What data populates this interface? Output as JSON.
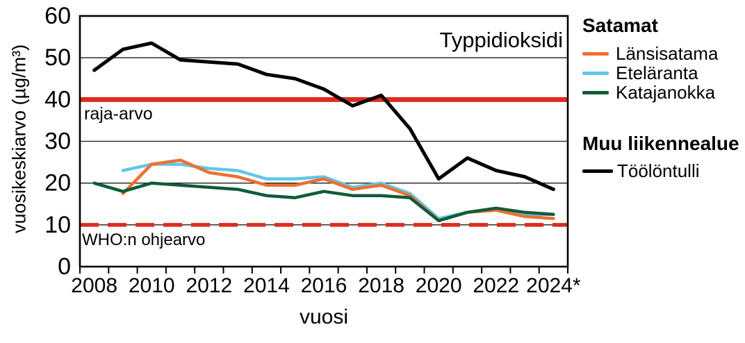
{
  "figure": {
    "title": "Typpidioksidi",
    "xlabel": "vuosi",
    "ylabel": "vuosikeskiarvo (µg/m³)"
  },
  "annotations": {
    "limit_label": "raja-arvo",
    "who_label": "WHO:n ohjearvo"
  },
  "legend": {
    "group1_title": "Satamat",
    "group2_title": "Muu liikennealue",
    "items": [
      {
        "label": "Länsisatama",
        "color": "#ED7031"
      },
      {
        "label": "Eteläranta",
        "color": "#62C6E9"
      },
      {
        "label": "Katajanokka",
        "color": "#0F5C38"
      },
      {
        "label": "Töölöntulli",
        "color": "#000000"
      }
    ]
  },
  "colors": {
    "reference_red": "#DD2B20",
    "grid": "#1a1a1a",
    "axis": "#000000"
  },
  "chart_data": {
    "type": "line",
    "title": "Typpidioksidi",
    "xlabel": "vuosi",
    "ylabel": "vuosikeskiarvo (µg/m³)",
    "x": [
      2008,
      2009,
      2010,
      2011,
      2012,
      2013,
      2014,
      2015,
      2016,
      2017,
      2018,
      2019,
      2020,
      2021,
      2022,
      2023,
      2024
    ],
    "x_tick_labels": [
      "2008",
      "2010",
      "2012",
      "2014",
      "2016",
      "2018",
      "2020",
      "2022",
      "2024*"
    ],
    "ylim": [
      0,
      60
    ],
    "yticks": [
      0,
      10,
      20,
      30,
      40,
      50,
      60
    ],
    "grid": true,
    "legend_position": "right",
    "series": [
      {
        "name": "Länsisatama",
        "group": "Satamat",
        "color": "#ED7031",
        "values": [
          null,
          17.5,
          24.5,
          25.5,
          22.5,
          21.5,
          19.5,
          19.5,
          21,
          18.5,
          19.5,
          17,
          11,
          13,
          13.5,
          12,
          11.5
        ]
      },
      {
        "name": "Eteläranta",
        "group": "Satamat",
        "color": "#62C6E9",
        "values": [
          null,
          23,
          24.5,
          24.5,
          23.5,
          23,
          21,
          21,
          21.5,
          19,
          20,
          17.5,
          11.5,
          13,
          14,
          12.5,
          12.5
        ]
      },
      {
        "name": "Katajanokka",
        "group": "Satamat",
        "color": "#0F5C38",
        "values": [
          20,
          18,
          20,
          19.5,
          19,
          18.5,
          17,
          16.5,
          18,
          17,
          17,
          16.5,
          11,
          13,
          14,
          13,
          12.5
        ]
      },
      {
        "name": "Töölöntulli",
        "group": "Muu liikennealue",
        "color": "#000000",
        "values": [
          47,
          52,
          53.5,
          49.5,
          49,
          48.5,
          46,
          45,
          42.5,
          38.5,
          41,
          33,
          21,
          26,
          23,
          21.5,
          18.5
        ]
      }
    ],
    "reference_lines": [
      {
        "label": "raja-arvo",
        "value": 40,
        "style": "solid",
        "color": "#DD2B20"
      },
      {
        "label": "WHO:n ohjearvo",
        "value": 10,
        "style": "dashed",
        "color": "#DD2B20"
      }
    ]
  }
}
